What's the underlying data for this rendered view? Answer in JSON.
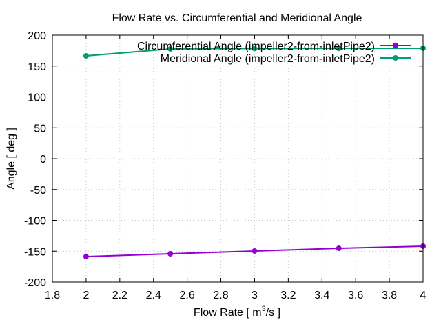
{
  "chart_data": {
    "type": "line",
    "title": "Flow Rate vs. Circumferential and Meridional Angle",
    "xlabel": "Flow Rate [ m3/s ]",
    "xlabel_parts": {
      "pre": "Flow Rate [ m",
      "sup": "3",
      "post": "/s ]"
    },
    "ylabel": "Angle [ deg ]",
    "xlim": [
      1.8,
      4
    ],
    "ylim": [
      -200,
      200
    ],
    "xticks": [
      "1.8",
      "2",
      "2.2",
      "2.4",
      "2.6",
      "2.8",
      "3",
      "3.2",
      "3.4",
      "3.6",
      "3.8",
      "4"
    ],
    "yticks": [
      "-200",
      "-150",
      "-100",
      "-50",
      "0",
      "50",
      "100",
      "150",
      "200"
    ],
    "grid": true,
    "legend_position": "top-right",
    "series": [
      {
        "name": "Circumferential Angle (impeller2-from-inletPipe2)",
        "color": "#9400d3",
        "x": [
          2,
          2.5,
          3,
          3.5,
          4
        ],
        "y": [
          -158.7,
          -154.2,
          -149.7,
          -145.3,
          -141.9
        ]
      },
      {
        "name": "Meridional Angle (impeller2-from-inletPipe2)",
        "color": "#009e73",
        "x": [
          2,
          2.5,
          3,
          3.5,
          4
        ],
        "y": [
          166.5,
          177.7,
          178.3,
          178.6,
          178.8
        ]
      }
    ]
  }
}
